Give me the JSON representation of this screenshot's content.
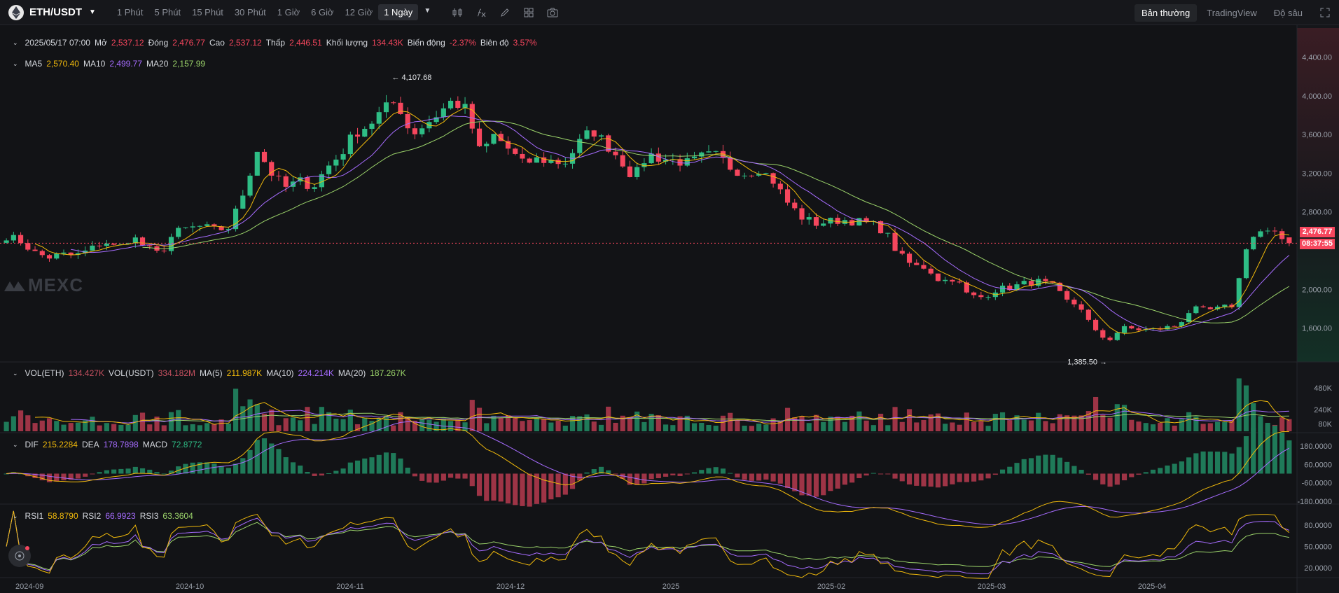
{
  "pair": {
    "name": "ETH/USDT"
  },
  "intervals": [
    "1 Phút",
    "5 Phút",
    "15 Phút",
    "30 Phút",
    "1 Giờ",
    "6 Giờ",
    "12 Giờ",
    "1 Ngày"
  ],
  "active_interval": "1 Ngày",
  "views": [
    "Bản thường",
    "TradingView",
    "Độ sâu"
  ],
  "active_view": "Bản thường",
  "ohlc": {
    "date": "2025/05/17 07:00",
    "open_label": "Mở",
    "open": "2,537.12",
    "close_label": "Đóng",
    "close": "2,476.77",
    "high_label": "Cao",
    "high": "2,537.12",
    "low_label": "Thấp",
    "low": "2,446.51",
    "volume_label": "Khối lượng",
    "volume": "134.43K",
    "change_label": "Biến động",
    "change": "-2.37%",
    "amplitude_label": "Biên độ",
    "amplitude": "3.57%"
  },
  "ma": {
    "ma5_label": "MA5",
    "ma5": "2,570.40",
    "ma10_label": "MA10",
    "ma10": "2,499.77",
    "ma20_label": "MA20",
    "ma20": "2,157.99"
  },
  "volume_legend": {
    "vol_eth_label": "VOL(ETH)",
    "vol_eth": "134.427K",
    "vol_usdt_label": "VOL(USDT)",
    "vol_usdt": "334.182M",
    "ma5_label": "MA(5)",
    "ma5": "211.987K",
    "ma10_label": "MA(10)",
    "ma10": "224.214K",
    "ma20_label": "MA(20)",
    "ma20": "187.267K"
  },
  "macd_legend": {
    "dif_label": "DIF",
    "dif": "215.2284",
    "dea_label": "DEA",
    "dea": "178.7898",
    "macd_label": "MACD",
    "macd": "72.8772"
  },
  "rsi_legend": {
    "rsi1_label": "RSI1",
    "rsi1": "58.8790",
    "rsi2_label": "RSI2",
    "rsi2": "66.9923",
    "rsi3_label": "RSI3",
    "rsi3": "63.3604"
  },
  "annotations": {
    "high": "4,107.68",
    "low": "1,385.50"
  },
  "last_price": {
    "price": "2,476.77",
    "countdown": "08:37:55"
  },
  "watermark": "MEXC",
  "colors": {
    "up": "#2ebd85",
    "down": "#f6465d",
    "ma5": "#f0b90b",
    "ma10": "#a66cff",
    "ma20": "#9bd36a"
  },
  "chart_data": {
    "type": "candlestick",
    "interval": "1 Ngày",
    "x_ticks": [
      "2024-09",
      "2024-10",
      "2024-11",
      "2024-12",
      "2025",
      "2025-02",
      "2025-03",
      "2025-04"
    ],
    "price_axis": {
      "ticks": [
        "4,400.00",
        "4,000.00",
        "3,600.00",
        "3,200.00",
        "2,800.00",
        "2,000.00",
        "1,600.00"
      ],
      "ylim": [
        1250,
        4700
      ]
    },
    "close_anchors": [
      2550,
      2500,
      2380,
      2330,
      2360,
      2350,
      2410,
      2500,
      2420,
      2550,
      2430,
      2360,
      2580,
      2630,
      2650,
      2610,
      2640,
      3000,
      3450,
      3200,
      3050,
      3120,
      3060,
      3260,
      3400,
      3620,
      3700,
      3850,
      3950,
      3600,
      3700,
      3820,
      3950,
      3850,
      3400,
      3600,
      3450,
      3300,
      3340,
      3330,
      3300,
      3500,
      3650,
      3500,
      3350,
      3150,
      3400,
      3350,
      3330,
      3300,
      3380,
      3380,
      3250,
      3200,
      3250,
      3120,
      2900,
      2750,
      2680,
      2700,
      2720,
      2700,
      2680,
      2600,
      2360,
      2240,
      2230,
      2080,
      2120,
      1930,
      1920,
      2000,
      2020,
      2060,
      2080,
      2040,
      1880,
      1830,
      1570,
      1470,
      1600,
      1590,
      1580,
      1600,
      1630,
      1800,
      1780,
      1800,
      1840,
      2500,
      2600,
      2560,
      2480
    ],
    "volume_axis": {
      "ticks": [
        "480K",
        "240K",
        "80K"
      ]
    },
    "macd_axis": {
      "ticks": [
        "180.0000",
        "60.0000",
        "-60.0000",
        "-180.0000"
      ]
    },
    "rsi_axis": {
      "ticks": [
        "80.0000",
        "50.0000",
        "20.0000"
      ]
    },
    "last": {
      "open": 2537.12,
      "close": 2476.77,
      "high": 2537.12,
      "low": 2446.51,
      "ma5": 2570.4,
      "ma10": 2499.77,
      "ma20": 2157.99,
      "volume": 134427,
      "dif": 215.2284,
      "dea": 178.7898,
      "macd": 72.8772,
      "rsi1": 58.879,
      "rsi2": 66.9923,
      "rsi3": 63.3604
    },
    "extremes": {
      "high": 4107.68,
      "low": 1385.5
    },
    "grid": false
  }
}
